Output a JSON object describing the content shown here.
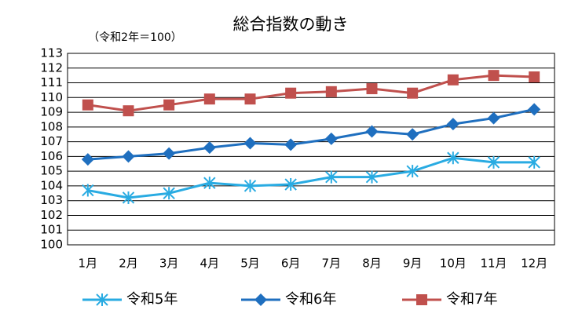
{
  "chart_data": {
    "type": "line",
    "title": "総合指数の動き",
    "subtitle": "（令和2年＝100）",
    "categories": [
      "1月",
      "2月",
      "3月",
      "4月",
      "5月",
      "6月",
      "7月",
      "8月",
      "9月",
      "10月",
      "11月",
      "12月"
    ],
    "series": [
      {
        "name": "令和5年",
        "color": "#29abe2",
        "marker": "star",
        "values": [
          103.7,
          103.2,
          103.5,
          104.2,
          104.0,
          104.1,
          104.6,
          104.6,
          105.0,
          105.9,
          105.6,
          105.6
        ]
      },
      {
        "name": "令和6年",
        "color": "#1f6fbf",
        "marker": "diamond",
        "values": [
          105.8,
          106.0,
          106.2,
          106.6,
          106.9,
          106.8,
          107.2,
          107.7,
          107.5,
          108.2,
          108.6,
          109.2
        ]
      },
      {
        "name": "令和7年",
        "color": "#c0504d",
        "marker": "square",
        "values": [
          109.5,
          109.1,
          109.5,
          109.9,
          109.9,
          110.3,
          110.4,
          110.6,
          110.3,
          111.2,
          111.5,
          111.4
        ]
      }
    ],
    "ylim": [
      100,
      113
    ],
    "yticks": [
      100,
      101,
      102,
      103,
      104,
      105,
      106,
      107,
      108,
      109,
      110,
      111,
      112,
      113
    ],
    "grid": true,
    "legend": "bottom"
  }
}
